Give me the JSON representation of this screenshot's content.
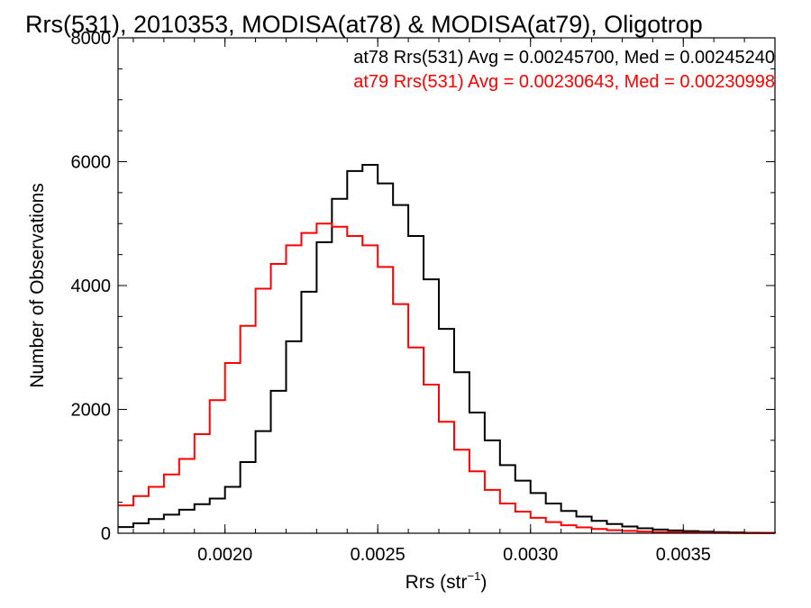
{
  "chart_data": {
    "type": "line",
    "title": "Rrs(531), 2010353, MODISA(at78) & MODISA(at79), Oligotrop",
    "xlabel": "Rrs (str",
    "xlabel_sup": "−1",
    "xlabel_close": ")",
    "ylabel": "Number of Observations",
    "xlim": [
      0.00165,
      0.0038
    ],
    "ylim": [
      0,
      8000
    ],
    "x_ticks": [
      0.002,
      0.0025,
      0.003,
      0.0035
    ],
    "x_tick_labels": [
      "0.0020",
      "0.0025",
      "0.0030",
      "0.0035"
    ],
    "y_ticks": [
      0,
      2000,
      4000,
      6000,
      8000
    ],
    "y_tick_labels": [
      "0",
      "2000",
      "4000",
      "6000",
      "8000"
    ],
    "grid": false,
    "legend_position": "top-right",
    "series": [
      {
        "name": "at78",
        "legend": "at78 Rrs(531) Avg = 0.00245700, Med = 0.00245240",
        "color": "#000000",
        "x": [
          0.00165,
          0.0017,
          0.00175,
          0.0018,
          0.00185,
          0.0019,
          0.00195,
          0.002,
          0.00205,
          0.0021,
          0.00215,
          0.0022,
          0.00225,
          0.0023,
          0.00235,
          0.0024,
          0.00245,
          0.0025,
          0.00255,
          0.0026,
          0.00265,
          0.0027,
          0.00275,
          0.0028,
          0.00285,
          0.0029,
          0.00295,
          0.003,
          0.00305,
          0.0031,
          0.00315,
          0.0032,
          0.00325,
          0.0033,
          0.00335,
          0.0034,
          0.00345,
          0.0035,
          0.00355,
          0.0036,
          0.00365,
          0.0037,
          0.00375,
          0.0038
        ],
        "y": [
          100,
          160,
          230,
          300,
          380,
          470,
          560,
          750,
          1150,
          1650,
          2300,
          3100,
          3900,
          4700,
          5400,
          5850,
          5950,
          5650,
          5300,
          4800,
          4100,
          3300,
          2600,
          1950,
          1500,
          1100,
          850,
          650,
          480,
          360,
          270,
          200,
          150,
          110,
          80,
          60,
          45,
          35,
          25,
          18,
          12,
          8,
          6,
          4
        ]
      },
      {
        "name": "at79",
        "legend": "at79 Rrs(531) Avg = 0.00230643, Med = 0.00230998",
        "color": "#ff0000",
        "x": [
          0.00165,
          0.0017,
          0.00175,
          0.0018,
          0.00185,
          0.0019,
          0.00195,
          0.002,
          0.00205,
          0.0021,
          0.00215,
          0.0022,
          0.00225,
          0.0023,
          0.00235,
          0.0024,
          0.00245,
          0.0025,
          0.00255,
          0.0026,
          0.00265,
          0.0027,
          0.00275,
          0.0028,
          0.00285,
          0.0029,
          0.00295,
          0.003,
          0.00305,
          0.0031,
          0.00315,
          0.0032,
          0.00325,
          0.0033,
          0.00335,
          0.0034,
          0.00345,
          0.0035,
          0.00355,
          0.0036,
          0.00365,
          0.0037,
          0.00375,
          0.0038
        ],
        "y": [
          450,
          600,
          750,
          950,
          1200,
          1600,
          2150,
          2750,
          3350,
          3950,
          4350,
          4650,
          4850,
          5000,
          4950,
          4800,
          4650,
          4300,
          3700,
          3000,
          2400,
          1800,
          1350,
          1000,
          700,
          480,
          350,
          250,
          180,
          130,
          95,
          70,
          50,
          38,
          28,
          20,
          14,
          10,
          7,
          5,
          3,
          2,
          1,
          1
        ]
      }
    ]
  }
}
